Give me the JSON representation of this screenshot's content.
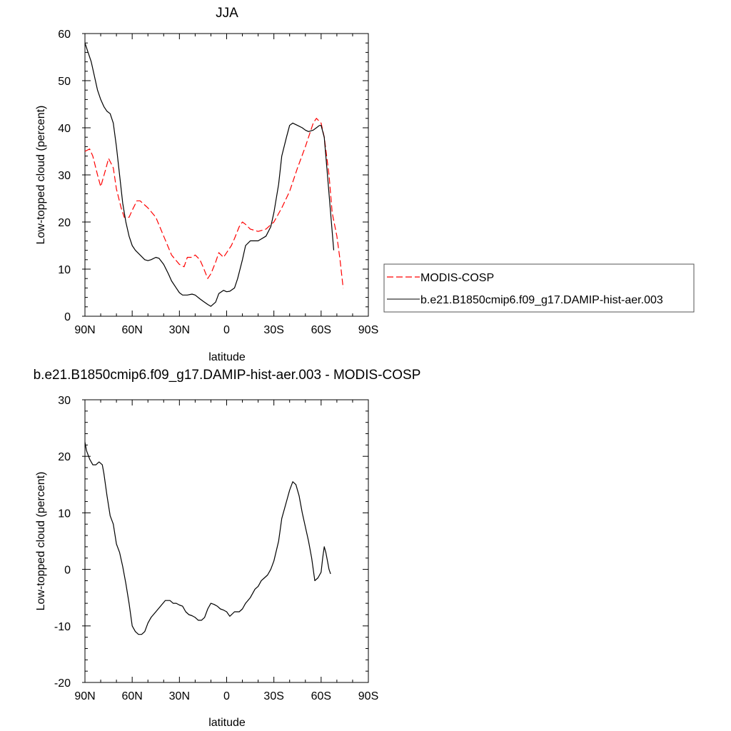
{
  "chart_data": [
    {
      "type": "line",
      "title": "JJA",
      "xlabel": "latitude",
      "ylabel": "Low-topped cloud (percent)",
      "xlim": [
        90,
        -90
      ],
      "ylim": [
        0,
        60
      ],
      "x_ticks": [
        90,
        60,
        30,
        0,
        -30,
        -60,
        -90
      ],
      "x_tick_labels": [
        "90N",
        "60N",
        "30N",
        "0",
        "30S",
        "60S",
        "90S"
      ],
      "y_ticks": [
        0,
        10,
        20,
        30,
        40,
        50,
        60
      ],
      "y_tick_labels": [
        "0",
        "10",
        "20",
        "30",
        "40",
        "50",
        "60"
      ],
      "legend": "right",
      "series": [
        {
          "name": "MODIS-COSP",
          "color": "#ff0000",
          "dash": "dashed",
          "x": [
            90,
            87,
            85,
            82,
            80,
            77,
            75,
            72,
            70,
            67,
            65,
            62,
            60,
            57,
            55,
            50,
            45,
            40,
            35,
            30,
            27,
            25,
            22,
            20,
            17,
            15,
            12,
            10,
            7,
            5,
            2,
            0,
            -3,
            -5,
            -8,
            -10,
            -12,
            -15,
            -20,
            -25,
            -30,
            -35,
            -40,
            -45,
            -50,
            -55,
            -57,
            -60,
            -62,
            -65,
            -67,
            -70,
            -72,
            -74
          ],
          "y": [
            35,
            35.5,
            34,
            30,
            27.5,
            31,
            33.5,
            31.5,
            27,
            23,
            21,
            21,
            22.5,
            24.5,
            24.5,
            23,
            21,
            17,
            13,
            11,
            10.5,
            12.5,
            12.5,
            13,
            12,
            10.5,
            8,
            9,
            11.5,
            13.5,
            12.5,
            13.5,
            15,
            16.5,
            19,
            20,
            19.5,
            18.5,
            18,
            18.5,
            20,
            23,
            26.5,
            31.5,
            36,
            41,
            42,
            41,
            38,
            30,
            22,
            17,
            12,
            6
          ]
        },
        {
          "name": "b.e21.B1850cmip6.f09_g17.DAMIP-hist-aer.003",
          "color": "#000000",
          "dash": "solid",
          "x": [
            90,
            88,
            86,
            84,
            82,
            80,
            78,
            76,
            74,
            72,
            70,
            68,
            66,
            64,
            62,
            60,
            58,
            55,
            52,
            50,
            48,
            45,
            43,
            40,
            37,
            35,
            32,
            30,
            28,
            25,
            22,
            20,
            17,
            15,
            12,
            10,
            7,
            5,
            2,
            0,
            -2,
            -5,
            -7,
            -10,
            -12,
            -15,
            -20,
            -25,
            -28,
            -30,
            -33,
            -35,
            -38,
            -40,
            -42,
            -45,
            -48,
            -50,
            -52,
            -55,
            -57,
            -59,
            -60,
            -62,
            -64,
            -66,
            -68
          ],
          "y": [
            58,
            56,
            54,
            51,
            48,
            46,
            44.5,
            43.5,
            43,
            41,
            36,
            30,
            24,
            20,
            17,
            15,
            14,
            13,
            12,
            11.8,
            12,
            12.5,
            12.3,
            11,
            9,
            7.5,
            6,
            5,
            4.5,
            4.5,
            4.7,
            4.5,
            3.7,
            3.2,
            2.5,
            2.1,
            3,
            4.8,
            5.5,
            5.2,
            5.3,
            6,
            8,
            12,
            15,
            16,
            16,
            17,
            19,
            22,
            28,
            34,
            38,
            40.5,
            41,
            40.5,
            40,
            39.5,
            39.2,
            39.5,
            40,
            40.5,
            40.5,
            38,
            30,
            22,
            14
          ]
        }
      ]
    },
    {
      "type": "line",
      "title": "b.e21.B1850cmip6.f09_g17.DAMIP-hist-aer.003 - MODIS-COSP",
      "xlabel": "latitude",
      "ylabel": "Low-topped cloud (percent)",
      "xlim": [
        90,
        -90
      ],
      "ylim": [
        -20,
        30
      ],
      "x_ticks": [
        90,
        60,
        30,
        0,
        -30,
        -60,
        -90
      ],
      "x_tick_labels": [
        "90N",
        "60N",
        "30N",
        "0",
        "30S",
        "60S",
        "90S"
      ],
      "y_ticks": [
        -20,
        -10,
        0,
        10,
        20,
        30
      ],
      "y_tick_labels": [
        "-20",
        "-10",
        "0",
        "10",
        "20",
        "30"
      ],
      "series": [
        {
          "color": "#000000",
          "dash": "solid",
          "x": [
            90,
            89,
            87,
            85,
            83,
            81,
            79,
            78,
            76,
            74,
            72,
            70,
            68,
            66,
            64,
            62,
            60,
            58,
            56,
            54,
            52,
            50,
            48,
            45,
            42,
            39,
            36,
            34,
            32,
            30,
            28,
            26,
            24,
            22,
            20,
            18,
            16,
            14,
            12,
            10,
            8,
            6,
            4,
            2,
            0,
            -2,
            -5,
            -8,
            -10,
            -12,
            -15,
            -18,
            -20,
            -22,
            -24,
            -26,
            -28,
            -30,
            -33,
            -35,
            -38,
            -40,
            -42,
            -44,
            -46,
            -48,
            -50,
            -52,
            -54,
            -56,
            -58,
            -60,
            -61,
            -62,
            -63,
            -64,
            -65,
            -66
          ],
          "y": [
            22.5,
            21,
            19.5,
            18.5,
            18.5,
            19,
            18.5,
            17,
            13,
            9.5,
            8,
            4.5,
            3,
            0.5,
            -2.5,
            -6,
            -10,
            -11,
            -11.5,
            -11.5,
            -11,
            -9.5,
            -8.5,
            -7.5,
            -6.5,
            -5.5,
            -5.5,
            -6,
            -6,
            -6.3,
            -6.5,
            -7.5,
            -8,
            -8.2,
            -8.5,
            -9,
            -9,
            -8.5,
            -7,
            -6,
            -6.2,
            -6.5,
            -7,
            -7.2,
            -7.5,
            -8.3,
            -7.5,
            -7.5,
            -7,
            -6,
            -5,
            -3.5,
            -3,
            -2,
            -1.5,
            -1,
            0,
            1.5,
            5,
            9,
            12,
            14,
            15.5,
            15,
            13,
            10,
            7.5,
            5,
            2,
            -2,
            -1.5,
            -0.5,
            2,
            4,
            3,
            1.5,
            0,
            -0.8
          ]
        }
      ]
    }
  ]
}
